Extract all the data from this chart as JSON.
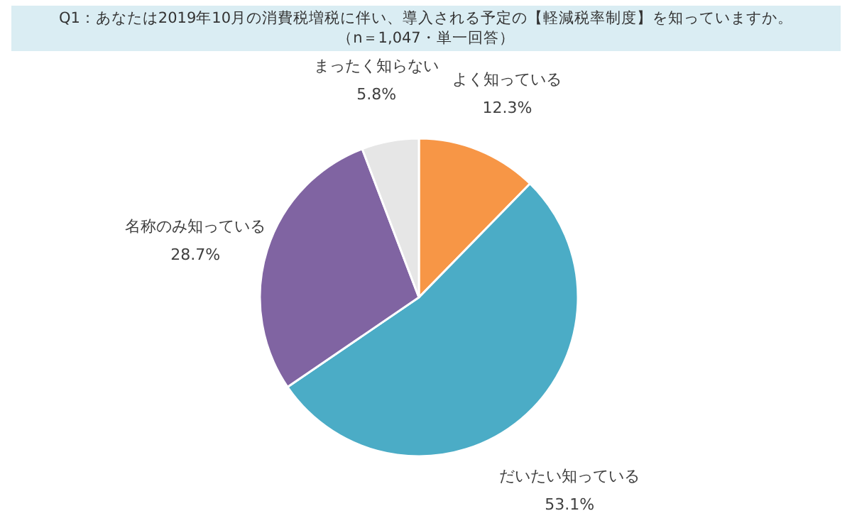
{
  "chart_data": {
    "type": "pie",
    "title": "Q1：あなたは2019年10月の消費税増税に伴い、導入される予定の【軽減税率制度】を知っていますか。",
    "subtitle": "（n＝1,047・単一回答）",
    "categories": [
      "よく知っている",
      "だいたい知っている",
      "名称のみ知っている",
      "まったく知らない"
    ],
    "values": [
      12.3,
      53.1,
      28.7,
      5.8
    ],
    "value_labels": [
      "12.3%",
      "53.1%",
      "28.7%",
      "5.8%"
    ],
    "colors": [
      "#f79646",
      "#4bacc6",
      "#8064a2",
      "#e6e6e6"
    ]
  }
}
